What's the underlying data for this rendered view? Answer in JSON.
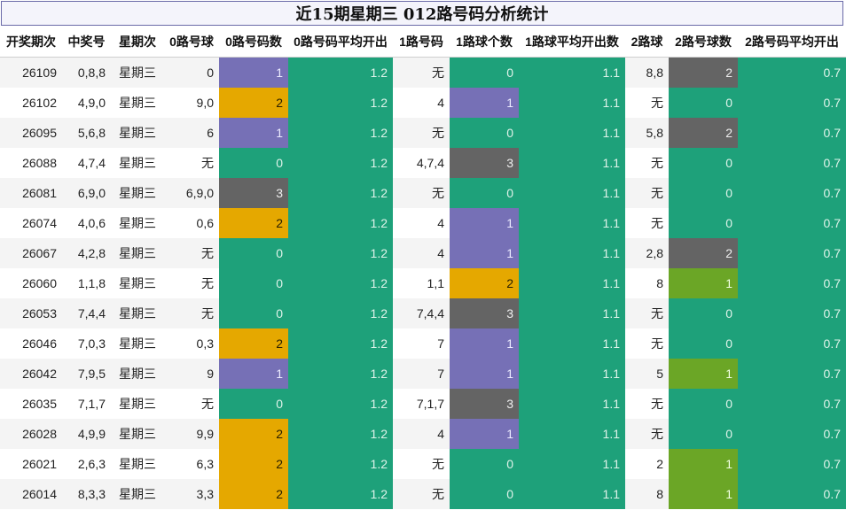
{
  "title": "近15期星期三 012路号码分析统计",
  "headers": [
    "开奖期次",
    "中奖号",
    "星期次",
    "0路号球",
    "0路号码数",
    "0路号码平均开出",
    "1路号码",
    "1路球个数",
    "1路球平均开出数",
    "2路球",
    "2路号球数",
    "2路号码平均开出"
  ],
  "rows": [
    {
      "issue": "26109",
      "draw": "0,8,8",
      "week": "星期三",
      "r0": "0",
      "r0c": "1",
      "r0avg": "1.2",
      "r1": "无",
      "r1c": "0",
      "r1avg": "1.1",
      "r2": "8,8",
      "r2c": "2",
      "r2avg": "0.7"
    },
    {
      "issue": "26102",
      "draw": "4,9,0",
      "week": "星期三",
      "r0": "9,0",
      "r0c": "2",
      "r0avg": "1.2",
      "r1": "4",
      "r1c": "1",
      "r1avg": "1.1",
      "r2": "无",
      "r2c": "0",
      "r2avg": "0.7"
    },
    {
      "issue": "26095",
      "draw": "5,6,8",
      "week": "星期三",
      "r0": "6",
      "r0c": "1",
      "r0avg": "1.2",
      "r1": "无",
      "r1c": "0",
      "r1avg": "1.1",
      "r2": "5,8",
      "r2c": "2",
      "r2avg": "0.7"
    },
    {
      "issue": "26088",
      "draw": "4,7,4",
      "week": "星期三",
      "r0": "无",
      "r0c": "0",
      "r0avg": "1.2",
      "r1": "4,7,4",
      "r1c": "3",
      "r1avg": "1.1",
      "r2": "无",
      "r2c": "0",
      "r2avg": "0.7"
    },
    {
      "issue": "26081",
      "draw": "6,9,0",
      "week": "星期三",
      "r0": "6,9,0",
      "r0c": "3",
      "r0avg": "1.2",
      "r1": "无",
      "r1c": "0",
      "r1avg": "1.1",
      "r2": "无",
      "r2c": "0",
      "r2avg": "0.7"
    },
    {
      "issue": "26074",
      "draw": "4,0,6",
      "week": "星期三",
      "r0": "0,6",
      "r0c": "2",
      "r0avg": "1.2",
      "r1": "4",
      "r1c": "1",
      "r1avg": "1.1",
      "r2": "无",
      "r2c": "0",
      "r2avg": "0.7"
    },
    {
      "issue": "26067",
      "draw": "4,2,8",
      "week": "星期三",
      "r0": "无",
      "r0c": "0",
      "r0avg": "1.2",
      "r1": "4",
      "r1c": "1",
      "r1avg": "1.1",
      "r2": "2,8",
      "r2c": "2",
      "r2avg": "0.7"
    },
    {
      "issue": "26060",
      "draw": "1,1,8",
      "week": "星期三",
      "r0": "无",
      "r0c": "0",
      "r0avg": "1.2",
      "r1": "1,1",
      "r1c": "2",
      "r1avg": "1.1",
      "r2": "8",
      "r2c": "1",
      "r2avg": "0.7"
    },
    {
      "issue": "26053",
      "draw": "7,4,4",
      "week": "星期三",
      "r0": "无",
      "r0c": "0",
      "r0avg": "1.2",
      "r1": "7,4,4",
      "r1c": "3",
      "r1avg": "1.1",
      "r2": "无",
      "r2c": "0",
      "r2avg": "0.7"
    },
    {
      "issue": "26046",
      "draw": "7,0,3",
      "week": "星期三",
      "r0": "0,3",
      "r0c": "2",
      "r0avg": "1.2",
      "r1": "7",
      "r1c": "1",
      "r1avg": "1.1",
      "r2": "无",
      "r2c": "0",
      "r2avg": "0.7"
    },
    {
      "issue": "26042",
      "draw": "7,9,5",
      "week": "星期三",
      "r0": "9",
      "r0c": "1",
      "r0avg": "1.2",
      "r1": "7",
      "r1c": "1",
      "r1avg": "1.1",
      "r2": "5",
      "r2c": "1",
      "r2avg": "0.7"
    },
    {
      "issue": "26035",
      "draw": "7,1,7",
      "week": "星期三",
      "r0": "无",
      "r0c": "0",
      "r0avg": "1.2",
      "r1": "7,1,7",
      "r1c": "3",
      "r1avg": "1.1",
      "r2": "无",
      "r2c": "0",
      "r2avg": "0.7"
    },
    {
      "issue": "26028",
      "draw": "4,9,9",
      "week": "星期三",
      "r0": "9,9",
      "r0c": "2",
      "r0avg": "1.2",
      "r1": "4",
      "r1c": "1",
      "r1avg": "1.1",
      "r2": "无",
      "r2c": "0",
      "r2avg": "0.7"
    },
    {
      "issue": "26021",
      "draw": "2,6,3",
      "week": "星期三",
      "r0": "6,3",
      "r0c": "2",
      "r0avg": "1.2",
      "r1": "无",
      "r1c": "0",
      "r1avg": "1.1",
      "r2": "2",
      "r2c": "1",
      "r2avg": "0.7"
    },
    {
      "issue": "26014",
      "draw": "8,3,3",
      "week": "星期三",
      "r0": "3,3",
      "r0c": "2",
      "r0avg": "1.2",
      "r1": "无",
      "r1c": "0",
      "r1avg": "1.1",
      "r2": "8",
      "r2c": "1",
      "r2avg": "0.7"
    }
  ]
}
